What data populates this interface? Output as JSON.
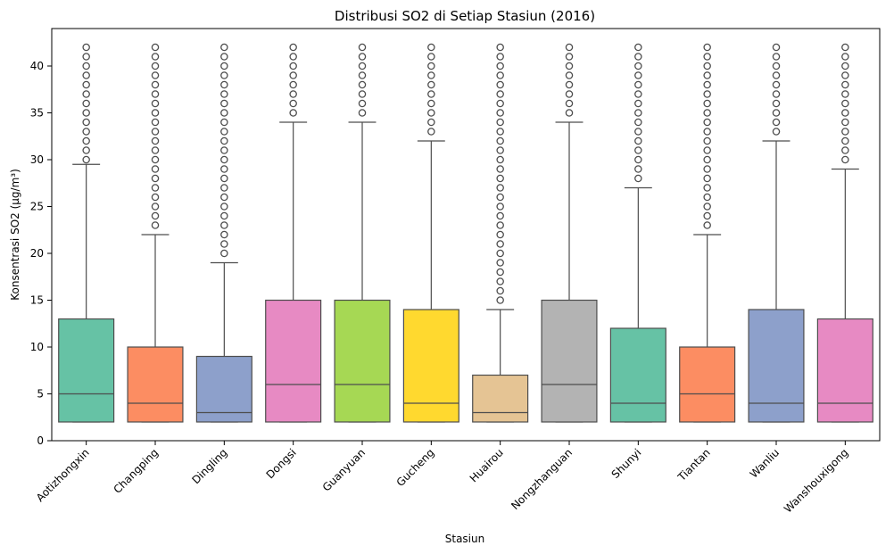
{
  "chart_data": {
    "type": "box",
    "title": "Distribusi SO2 di Setiap Stasiun (2016)",
    "xlabel": "Stasiun",
    "ylabel": "Konsentrasi SO2 (µg/m³)",
    "ylim": [
      0,
      44
    ],
    "yticks": [
      0,
      5,
      10,
      15,
      20,
      25,
      30,
      35,
      40
    ],
    "grid": false,
    "categories": [
      "Aotizhongxin",
      "Changping",
      "Dingling",
      "Dongsi",
      "Guanyuan",
      "Gucheng",
      "Huairou",
      "Nongzhanguan",
      "Shunyi",
      "Tiantan",
      "Wanliu",
      "Wanshouxigong"
    ],
    "colors": [
      "#66c2a5",
      "#fc8d62",
      "#8da0cb",
      "#e78ac3",
      "#a6d854",
      "#ffd92f",
      "#e5c494",
      "#b3b3b3",
      "#66c2a5",
      "#fc8d62",
      "#8da0cb",
      "#e78ac3"
    ],
    "boxes": [
      {
        "min": 2,
        "q1": 2,
        "median": 5,
        "q3": 13,
        "max": 29.5,
        "outlier_range": [
          30,
          42
        ]
      },
      {
        "min": 2,
        "q1": 2,
        "median": 4,
        "q3": 10,
        "max": 22,
        "outlier_range": [
          23,
          42
        ]
      },
      {
        "min": 2,
        "q1": 2,
        "median": 3,
        "q3": 9,
        "max": 19,
        "outlier_range": [
          20,
          42
        ]
      },
      {
        "min": 2,
        "q1": 2,
        "median": 6,
        "q3": 15,
        "max": 34,
        "outlier_range": [
          35,
          42
        ]
      },
      {
        "min": 2,
        "q1": 2,
        "median": 6,
        "q3": 15,
        "max": 34,
        "outlier_range": [
          35,
          42
        ]
      },
      {
        "min": 2,
        "q1": 2,
        "median": 4,
        "q3": 14,
        "max": 32,
        "outlier_range": [
          33,
          42
        ]
      },
      {
        "min": 2,
        "q1": 2,
        "median": 3,
        "q3": 7,
        "max": 14,
        "outlier_range": [
          15,
          42
        ]
      },
      {
        "min": 2,
        "q1": 2,
        "median": 6,
        "q3": 15,
        "max": 34,
        "outlier_range": [
          35,
          42
        ]
      },
      {
        "min": 2,
        "q1": 2,
        "median": 4,
        "q3": 12,
        "max": 27,
        "outlier_range": [
          28,
          42
        ]
      },
      {
        "min": 2,
        "q1": 2,
        "median": 5,
        "q3": 10,
        "max": 22,
        "outlier_range": [
          23,
          42
        ]
      },
      {
        "min": 2,
        "q1": 2,
        "median": 4,
        "q3": 14,
        "max": 32,
        "outlier_range": [
          33,
          42
        ]
      },
      {
        "min": 2,
        "q1": 2,
        "median": 4,
        "q3": 13,
        "max": 29,
        "outlier_range": [
          30,
          42
        ]
      }
    ]
  }
}
